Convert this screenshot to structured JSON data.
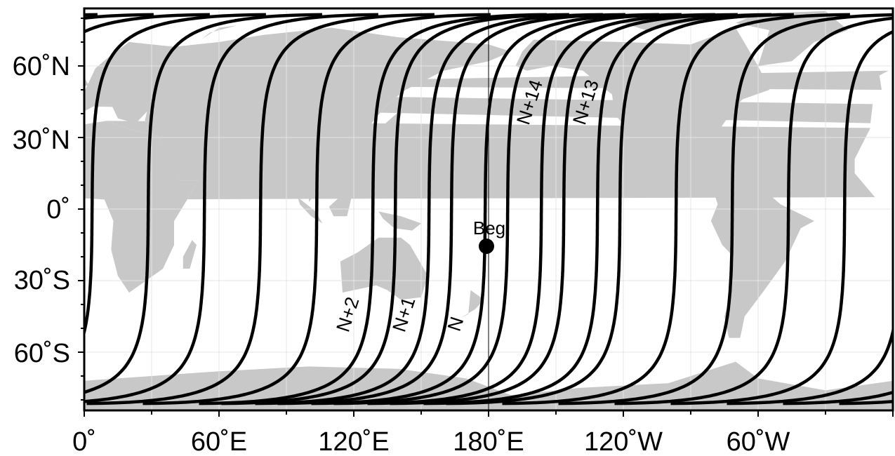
{
  "map": {
    "colors": {
      "land": "#c8c8c8",
      "ocean": "#ffffff",
      "track": "#000000",
      "frame": "#000000"
    },
    "axes": {
      "lon_ticks": [
        "0˚",
        "60˚E",
        "120˚E",
        "180˚E",
        "120˚W",
        "60˚W"
      ],
      "lat_ticks": [
        "60˚N",
        "30˚N",
        "0˚",
        "30˚S",
        "60˚S"
      ]
    },
    "marker": {
      "label": "Beg",
      "lon": 180,
      "lat": -15
    },
    "orbit": {
      "tracks": 15,
      "lon_step_deg": 25
    },
    "track_labels": [
      {
        "text": "N+2",
        "lon": 120,
        "lat": -45
      },
      {
        "text": "N+1",
        "lon": 145,
        "lat": -45
      },
      {
        "text": "N",
        "lon": 168,
        "lat": -49
      },
      {
        "text": "N+14",
        "lon": 201,
        "lat": 44
      },
      {
        "text": "N+13",
        "lon": 226,
        "lat": 44
      }
    ]
  }
}
